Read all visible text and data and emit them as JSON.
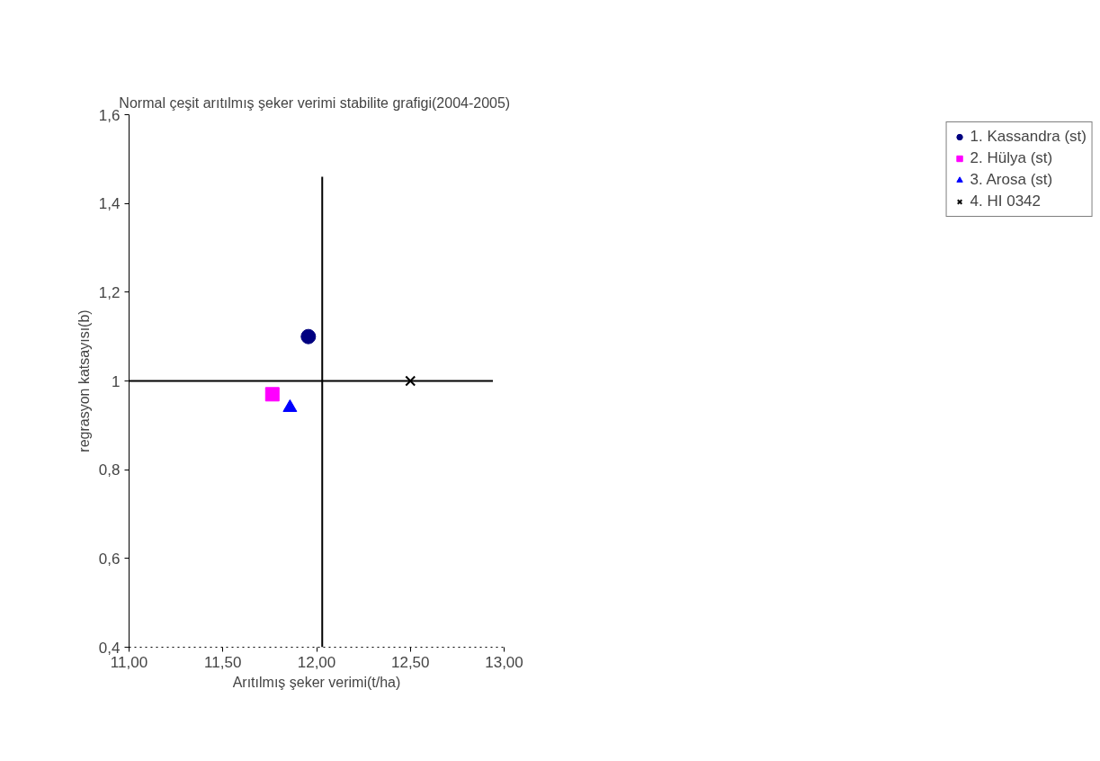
{
  "chart_data": {
    "type": "scatter",
    "title": "Normal çeşit arıtılmış şeker  verimi stabilite grafigi(2004-2005)",
    "xlabel": "Arıtılmış şeker verimi(t/ha)",
    "ylabel": "regrasyon katsayısı(b)",
    "xlim": [
      11.0,
      13.0
    ],
    "xticks": [
      {
        "value": 11.0,
        "label": "11,00"
      },
      {
        "value": 11.5,
        "label": "11,50"
      },
      {
        "value": 12.0,
        "label": "12,00"
      },
      {
        "value": 12.5,
        "label": "12,50"
      },
      {
        "value": 13.0,
        "label": "13,00"
      }
    ],
    "ylim": [
      0.4,
      1.6
    ],
    "yticks": [
      {
        "value": 0.4,
        "label": "0,4"
      },
      {
        "value": 0.6,
        "label": "0,6"
      },
      {
        "value": 0.8,
        "label": "0,8"
      },
      {
        "value": 1.0,
        "label": "1"
      },
      {
        "value": 1.2,
        "label": "1,2"
      },
      {
        "value": 1.4,
        "label": "1,4"
      },
      {
        "value": 1.6,
        "label": "1,6"
      }
    ],
    "grid": false,
    "legend": "right",
    "series": [
      {
        "name": "1. Kassandra (st)",
        "color": "#000080",
        "marker": "circle",
        "x": [
          11.956
        ],
        "values": [
          1.1
        ]
      },
      {
        "name": "2. Hülya (st)",
        "color": "#ff00ff",
        "marker": "square",
        "x": [
          11.764
        ],
        "values": [
          0.97
        ]
      },
      {
        "name": "3. Arosa (st)",
        "color": "#0000ff",
        "marker": "triangle",
        "x": [
          11.858
        ],
        "values": [
          0.94
        ]
      },
      {
        "name": "4. HI 0342",
        "color": "#000000",
        "marker": "cross",
        "x": [
          12.5
        ],
        "values": [
          1.0
        ]
      },
      {
        "type": "line",
        "color": "#000000",
        "marker": "none",
        "x": [
          12.03,
          12.03
        ],
        "values": [
          0.4,
          1.46
        ]
      },
      {
        "type": "line",
        "color": "#000000",
        "marker": "none",
        "x": [
          11.0,
          12.94
        ],
        "values": [
          1.0,
          1.0
        ]
      }
    ]
  }
}
